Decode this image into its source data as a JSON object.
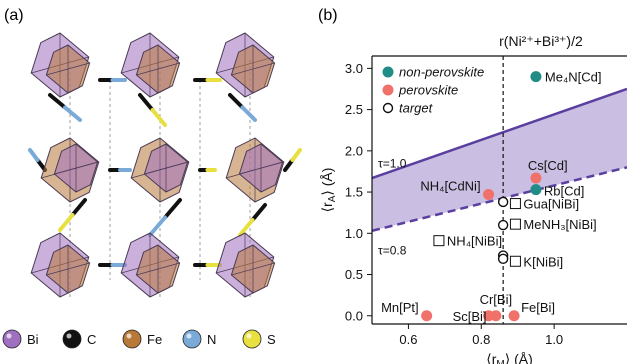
{
  "panel_a": {
    "label": "(a)",
    "legend": [
      {
        "symbol": "Bi",
        "color": "#a070c0"
      },
      {
        "symbol": "C",
        "color": "#111111"
      },
      {
        "symbol": "Fe",
        "color": "#b87838"
      },
      {
        "symbol": "N",
        "color": "#7aaad8"
      },
      {
        "symbol": "S",
        "color": "#e8e040"
      }
    ]
  },
  "panel_b": {
    "label": "(b)"
  },
  "chart_data": {
    "type": "scatter",
    "xlabel": "⟨r_M⟩ (Å)",
    "ylabel": "⟨r_A⟩ (Å)",
    "xlim": [
      0.5,
      1.2
    ],
    "ylim": [
      -0.1,
      3.15
    ],
    "x_ticks": [
      0.6,
      0.8,
      1.0
    ],
    "y_ticks": [
      0.0,
      0.5,
      1.0,
      1.5,
      2.0,
      2.5,
      3.0
    ],
    "vline": {
      "x": 0.86,
      "label": "r(Ni²⁺+Bi³⁺)/2"
    },
    "tau_lines": [
      {
        "label": "τ = 1.0",
        "style": "solid",
        "x": [
          0.5,
          1.2
        ],
        "y": [
          1.67,
          2.75
        ]
      },
      {
        "label": "τ = 0.8",
        "style": "dashed",
        "x": [
          0.5,
          1.2
        ],
        "y": [
          1.03,
          1.8
        ]
      }
    ],
    "legend": [
      {
        "label": "non-perovskite",
        "marker": "filled",
        "color": "#1f8c85"
      },
      {
        "label": "perovskite",
        "marker": "filled",
        "color": "#f0706a"
      },
      {
        "label": "target",
        "marker": "open",
        "color": "#111111"
      }
    ],
    "series": [
      {
        "name": "non-perovskite",
        "color": "#1f8c85",
        "points": [
          {
            "x": 0.95,
            "y": 1.53,
            "label": "Rb[Cd]"
          },
          {
            "x": 0.95,
            "y": 2.9,
            "label": "Me₄N[Cd]"
          }
        ]
      },
      {
        "name": "perovskite",
        "color": "#f0706a",
        "points": [
          {
            "x": 0.65,
            "y": 0.0,
            "label": "Mn[Pt]"
          },
          {
            "x": 0.82,
            "y": 0.0,
            "label": "Sc[Bi]"
          },
          {
            "x": 0.84,
            "y": 0.0,
            "label": "Cr[Bi]"
          },
          {
            "x": 0.89,
            "y": 0.0,
            "label": "Fe[Bi]"
          },
          {
            "x": 0.82,
            "y": 1.47,
            "label": "NH₄[CdNi]"
          },
          {
            "x": 0.95,
            "y": 1.67,
            "label": "Cs[Cd]"
          }
        ]
      },
      {
        "name": "target",
        "color": "#111111",
        "points": [
          {
            "x": 0.86,
            "y": 1.38,
            "label": ""
          },
          {
            "x": 0.86,
            "y": 1.1,
            "label": ""
          },
          {
            "x": 0.86,
            "y": 0.73,
            "label": ""
          },
          {
            "x": 0.86,
            "y": 0.69,
            "label": ""
          }
        ]
      }
    ],
    "annotations": [
      {
        "text": "Gua[NiBi]",
        "x": 0.88,
        "y": 1.3
      },
      {
        "text": "MeNH₃[NiBi]",
        "x": 0.88,
        "y": 1.05
      },
      {
        "text": "NH₄[NiBi]",
        "x": 0.67,
        "y": 0.85
      },
      {
        "text": "K[NiBi]",
        "x": 0.88,
        "y": 0.6
      }
    ]
  }
}
